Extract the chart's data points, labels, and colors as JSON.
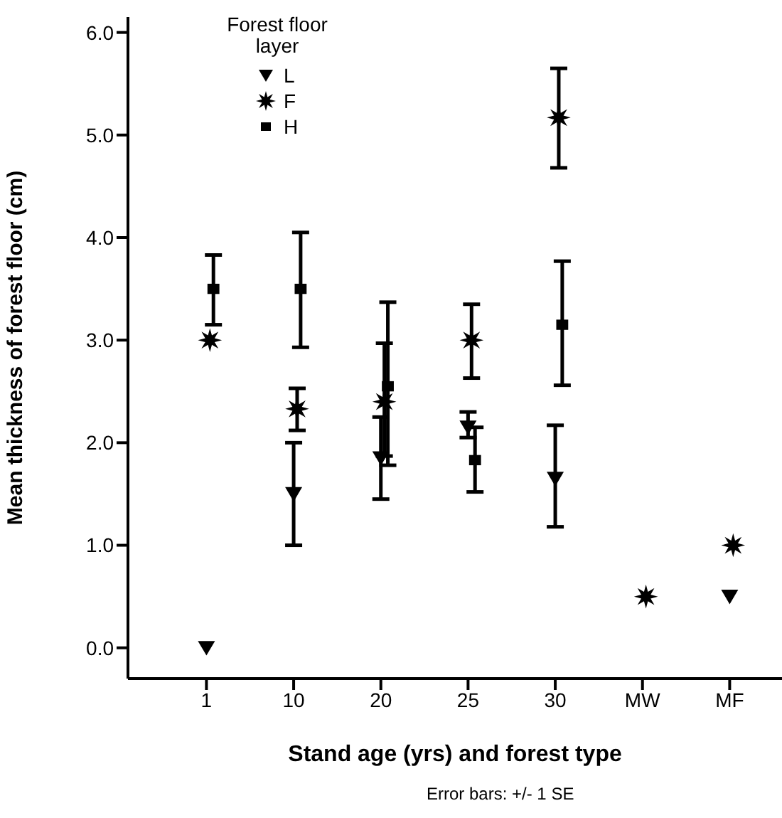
{
  "chart_data": {
    "type": "scatter",
    "xlabel": "Stand age (yrs) and forest type",
    "ylabel": "Mean thickness of forest floor (cm)",
    "legend_title": "Forest floor layer",
    "legend": "top left",
    "grid": false,
    "categories": [
      "1",
      "10",
      "20",
      "25",
      "30",
      "MW",
      "MF"
    ],
    "ylim": [
      -0.3,
      6.15
    ],
    "yticks": [
      {
        "value": 0,
        "label": "0.0"
      },
      {
        "value": 1,
        "label": "1.0"
      },
      {
        "value": 2,
        "label": "2.0"
      },
      {
        "value": 3,
        "label": "3.0"
      },
      {
        "value": 4,
        "label": "4.0"
      },
      {
        "value": 5,
        "label": "5.0"
      },
      {
        "value": 6,
        "label": "6.0"
      }
    ],
    "series": [
      {
        "name": "L",
        "color": "#000000",
        "marker": "triangle",
        "values": [
          0.0,
          1.5,
          1.85,
          2.15,
          1.65,
          null,
          0.5
        ],
        "errors": [
          null,
          [
            1.0,
            2.0
          ],
          [
            1.45,
            2.25
          ],
          [
            2.05,
            2.3
          ],
          [
            1.18,
            2.17
          ],
          null,
          null
        ]
      },
      {
        "name": "F",
        "color": "#000000",
        "marker": "star",
        "values": [
          3.0,
          2.33,
          2.4,
          3.0,
          5.17,
          0.5,
          1.0
        ],
        "errors": [
          null,
          [
            2.12,
            2.53
          ],
          [
            1.87,
            2.97
          ],
          [
            2.63,
            3.35
          ],
          [
            4.68,
            5.65
          ],
          null,
          null
        ]
      },
      {
        "name": "H",
        "color": "#000000",
        "marker": "square",
        "values": [
          3.5,
          3.5,
          2.55,
          1.83,
          3.15,
          null,
          null
        ],
        "errors": [
          [
            3.15,
            3.83
          ],
          [
            2.93,
            4.05
          ],
          [
            1.78,
            3.37
          ],
          [
            1.52,
            2.15
          ],
          [
            2.56,
            3.77
          ],
          null,
          null
        ]
      }
    ],
    "annotations": [
      "Error bars: +/- 1 SE"
    ]
  }
}
